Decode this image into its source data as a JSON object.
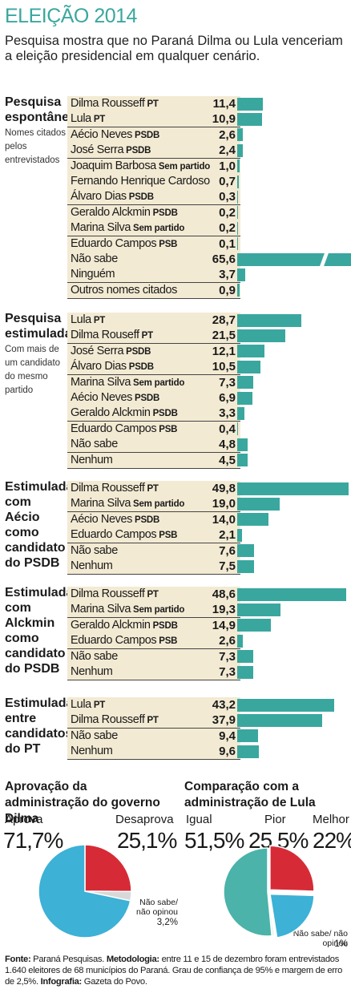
{
  "title": "ELEIÇÃO 2014",
  "subtitle": "Pesquisa mostra que no Paraná Dilma ou Lula venceriam a eleição presidencial em qualquer cenário.",
  "colors": {
    "bar": "#3aa79f",
    "row_bg": "#f3ead3",
    "title": "#3aa79f",
    "pie_red": "#d62b36",
    "pie_blue": "#3db1d6",
    "pie_gray": "#d8d8d8",
    "pie_teal": "#4bb3a9"
  },
  "chart_data": [
    {
      "type": "bar",
      "title": "Pesquisa espontânea",
      "note": "Nomes citados pelos entrevistados",
      "categories": [
        {
          "name": "Dilma Rousseff",
          "party": "PT"
        },
        {
          "name": "Lula",
          "party": "PT"
        },
        {
          "name": "Aécio Neves",
          "party": "PSDB"
        },
        {
          "name": "José Serra",
          "party": "PSDB"
        },
        {
          "name": "Joaquim Barbosa",
          "party": "Sem partido"
        },
        {
          "name": "Fernando Henrique Cardoso",
          "party": ""
        },
        {
          "name": "Álvaro Dias",
          "party": "PSDB"
        },
        {
          "name": "Geraldo Alckmin",
          "party": "PSDB"
        },
        {
          "name": "Marina Silva",
          "party": "Sem partido"
        },
        {
          "name": "Eduardo Campos",
          "party": "PSB"
        },
        {
          "name": "Não sabe",
          "party": ""
        },
        {
          "name": "Ninguém",
          "party": ""
        },
        {
          "name": "Outros nomes citados",
          "party": ""
        }
      ],
      "values": [
        11.4,
        10.9,
        2.6,
        2.4,
        1.0,
        0.7,
        0.3,
        0.2,
        0.2,
        0.1,
        65.6,
        3.7,
        0.9
      ],
      "labels": [
        "11,4",
        "10,9",
        "2,6",
        "2,4",
        "1,0",
        "0,7",
        "0,3",
        "0,2",
        "0,2",
        "0,1",
        "65,6",
        "3,7",
        "0,9"
      ],
      "broken": [
        10
      ]
    },
    {
      "type": "bar",
      "title": "Pesquisa estimulada",
      "note": "Com mais de um candidato do mesmo partido",
      "categories": [
        {
          "name": "Lula",
          "party": "PT"
        },
        {
          "name": "Dilma Rouseff",
          "party": "PT"
        },
        {
          "name": "José Serra",
          "party": "PSDB"
        },
        {
          "name": "Álvaro Dias",
          "party": "PSDB"
        },
        {
          "name": "Marina Silva",
          "party": "Sem partido"
        },
        {
          "name": "Aécio Neves",
          "party": "PSDB"
        },
        {
          "name": "Geraldo Alckmin",
          "party": "PSDB"
        },
        {
          "name": "Eduardo Campos",
          "party": "PSB"
        },
        {
          "name": "Não sabe",
          "party": ""
        },
        {
          "name": "Nenhum",
          "party": ""
        }
      ],
      "values": [
        28.7,
        21.5,
        12.1,
        10.5,
        7.3,
        6.9,
        3.3,
        0.4,
        4.8,
        4.5
      ],
      "labels": [
        "28,7",
        "21,5",
        "12,1",
        "10,5",
        "7,3",
        "6,9",
        "3,3",
        "0,4",
        "4,8",
        "4,5"
      ],
      "broken": []
    },
    {
      "type": "bar",
      "title": "Estimulada com Aécio como candidato do PSDB",
      "note": "",
      "categories": [
        {
          "name": "Dilma Rousseff",
          "party": "PT"
        },
        {
          "name": "Marina Silva",
          "party": "Sem partido"
        },
        {
          "name": "Aécio Neves",
          "party": "PSDB"
        },
        {
          "name": "Eduardo Campos",
          "party": "PSB"
        },
        {
          "name": "Não sabe",
          "party": ""
        },
        {
          "name": "Nenhum",
          "party": ""
        }
      ],
      "values": [
        49.8,
        19.0,
        14.0,
        2.1,
        7.6,
        7.5
      ],
      "labels": [
        "49,8",
        "19,0",
        "14,0",
        "2,1",
        "7,6",
        "7,5"
      ],
      "broken": []
    },
    {
      "type": "bar",
      "title": "Estimulada com Alckmin como candidato do PSDB",
      "note": "",
      "categories": [
        {
          "name": "Dilma Rousseff",
          "party": "PT"
        },
        {
          "name": "Marina Silva",
          "party": "Sem partido"
        },
        {
          "name": "Geraldo Alckmin",
          "party": "PSDB"
        },
        {
          "name": "Eduardo Campos",
          "party": "PSB"
        },
        {
          "name": "Não sabe",
          "party": ""
        },
        {
          "name": "Nenhum",
          "party": ""
        }
      ],
      "values": [
        48.6,
        19.3,
        14.9,
        2.6,
        7.3,
        7.3
      ],
      "labels": [
        "48,6",
        "19,3",
        "14,9",
        "2,6",
        "7,3",
        "7,3"
      ],
      "broken": []
    },
    {
      "type": "bar",
      "title": "Estimulada entre candidatos do PT",
      "note": "",
      "categories": [
        {
          "name": "Lula",
          "party": "PT"
        },
        {
          "name": "Dilma Rousseff",
          "party": "PT"
        },
        {
          "name": "Não sabe",
          "party": ""
        },
        {
          "name": "Nenhum",
          "party": ""
        }
      ],
      "values": [
        43.2,
        37.9,
        9.4,
        9.6
      ],
      "labels": [
        "43,2",
        "37,9",
        "9,4",
        "9,6"
      ],
      "broken": []
    },
    {
      "type": "pie",
      "title": "Aprovação da administração do governo Dilma",
      "slices": [
        {
          "name": "Aprova",
          "value": 71.7,
          "label": "71,7%"
        },
        {
          "name": "Desaprova",
          "value": 25.1,
          "label": "25,1%"
        },
        {
          "name": "Não sabe/ não opinou",
          "value": 3.2,
          "label": "3,2%"
        }
      ]
    },
    {
      "type": "pie",
      "title": "Comparação com a administração de Lula",
      "slices": [
        {
          "name": "Igual",
          "value": 51.5,
          "label": "51,5%"
        },
        {
          "name": "Pior",
          "value": 25.5,
          "label": "25,5%"
        },
        {
          "name": "Melhor",
          "value": 22,
          "label": "22%"
        },
        {
          "name": "Não sabe/ não opinou",
          "value": 1,
          "label": "1%"
        }
      ]
    }
  ],
  "footer": {
    "fonte_label": "Fonte:",
    "fonte": " Paraná Pesquisas. ",
    "metodologia_label": "Metodologia:",
    "metodologia": " entre 11 e 15 de dezembro foram entrevistados 1.640 eleitores de 68 municípios do Paraná. Grau de confiança de 95% e margem de erro de 2,5%. ",
    "infografia_label": "Infografia:",
    "infografia": " Gazeta do Povo."
  }
}
